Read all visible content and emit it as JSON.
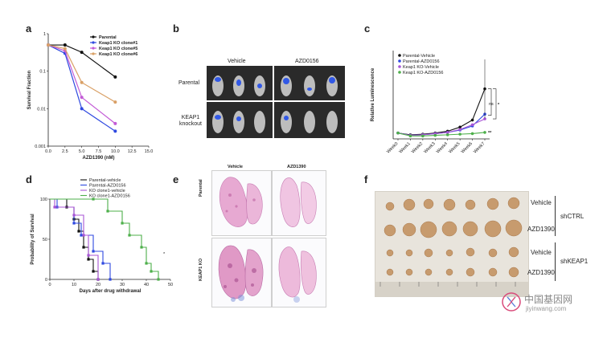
{
  "panels": {
    "a": "a",
    "b": "b",
    "c": "c",
    "d": "d",
    "e": "e",
    "f": "f"
  },
  "panel_b": {
    "col_vehicle": "Vehicle",
    "col_azd": "AZD0156",
    "row_parental": "Parental",
    "row_keap1": "KEAP1 knockout"
  },
  "panel_e": {
    "col_vehicle": "Vehicle",
    "col_azd": "AZD1390",
    "row_parental": "Parental",
    "row_keap1": "KEAP1 KO"
  },
  "panel_f": {
    "vehicle_1": "Vehicle",
    "azd_1": "AZD1390",
    "vehicle_2": "Vehicle",
    "azd_2": "AZD1390",
    "group_1": "shCTRL",
    "group_2": "shKEAP1"
  },
  "watermark": {
    "cn": "中国基因网",
    "url": "jiyinwang.com"
  },
  "chart_data": [
    {
      "panel": "a",
      "type": "line",
      "xlabel": "AZD1390 (nM)",
      "ylabel": "Survival Fraction",
      "yscale": "log",
      "ylim": [
        0.001,
        1
      ],
      "xlim": [
        0,
        15
      ],
      "xticks": [
        "0.0",
        "2.5",
        "5.0",
        "7.5",
        "10.0",
        "12.5",
        "15.0"
      ],
      "yticks": [
        "0.001",
        "0.01",
        "0.1",
        "1"
      ],
      "x": [
        0,
        2.5,
        5,
        10
      ],
      "series": [
        {
          "name": "Parental",
          "color": "#111111",
          "values": [
            0.5,
            0.5,
            0.32,
            0.07
          ]
        },
        {
          "name": "Keap1 KO clone#1",
          "color": "#2f49e0",
          "values": [
            0.5,
            0.3,
            0.01,
            0.0025
          ]
        },
        {
          "name": "Keap1 KO clone#5",
          "color": "#c35bd6",
          "values": [
            0.5,
            0.35,
            0.02,
            0.004
          ]
        },
        {
          "name": "Keap1 KO clone#6",
          "color": "#d9a066",
          "values": [
            0.5,
            0.4,
            0.05,
            0.015
          ]
        }
      ]
    },
    {
      "panel": "c",
      "type": "line",
      "ylabel": "Relative Luminescence",
      "xticks": [
        "Week0",
        "Week1",
        "Week2",
        "Week3",
        "Week4",
        "Week5",
        "Week6",
        "Week7"
      ],
      "ylim": [
        0,
        15
      ],
      "series": [
        {
          "name": "Parental-Vehicle",
          "color": "#111111",
          "values": [
            1,
            0.7,
            0.8,
            1,
            1.3,
            2,
            3.2,
            8.5
          ]
        },
        {
          "name": "Parental-AZD0156",
          "color": "#2f49e0",
          "values": [
            1,
            0.6,
            0.7,
            0.9,
            1.1,
            1.5,
            2.2,
            4.2
          ]
        },
        {
          "name": "Keap1 KO-Vehicle",
          "color": "#a855d6",
          "values": [
            1,
            0.6,
            0.7,
            0.9,
            1.1,
            1.6,
            2.4,
            3.4
          ]
        },
        {
          "name": "Keap1 KO-AZD0156",
          "color": "#4daf4a",
          "values": [
            1,
            0.5,
            0.5,
            0.6,
            0.7,
            0.8,
            0.9,
            1.1
          ]
        }
      ],
      "annotations": [
        "ns",
        "*",
        "**"
      ]
    },
    {
      "panel": "d",
      "type": "line",
      "xlabel": "Days after drug withdrawal",
      "ylabel": "Probability of Survival",
      "xticks": [
        "0",
        "10",
        "20",
        "30",
        "40",
        "50"
      ],
      "yticks": [
        "0",
        "50",
        "100"
      ],
      "xlim": [
        0,
        50
      ],
      "ylim": [
        0,
        100
      ],
      "series": [
        {
          "name": "Parental-vehicle",
          "color": "#111111",
          "x": [
            0,
            7,
            10,
            12,
            14,
            16,
            18,
            20
          ],
          "values": [
            100,
            90,
            75,
            60,
            40,
            25,
            10,
            0
          ]
        },
        {
          "name": "Parental-AZD0156",
          "color": "#2f49e0",
          "x": [
            0,
            3,
            10,
            13,
            18,
            22,
            25
          ],
          "values": [
            100,
            90,
            70,
            55,
            35,
            20,
            0
          ]
        },
        {
          "name": "KO clone1-vehicle",
          "color": "#a855d6",
          "x": [
            0,
            2,
            10,
            14,
            16,
            20
          ],
          "values": [
            100,
            90,
            80,
            55,
            30,
            0
          ]
        },
        {
          "name": "KO clone1-AZD0156",
          "color": "#4daf4a",
          "x": [
            0,
            18,
            24,
            30,
            33,
            38,
            40,
            42,
            45
          ],
          "values": [
            100,
            100,
            85,
            70,
            55,
            40,
            20,
            10,
            0
          ]
        }
      ],
      "annotations": [
        "*"
      ]
    }
  ]
}
